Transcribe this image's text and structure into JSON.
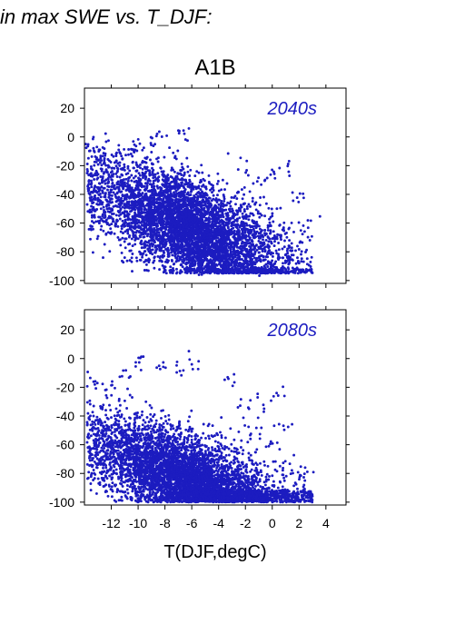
{
  "figure": {
    "title": "in max SWE vs. T_DJF:",
    "scenario": "A1B",
    "xlabel": "T(DJF,degC)"
  },
  "colors": {
    "points": "#1c1cc0",
    "axes": "#000000",
    "background": "#ffffff"
  },
  "chart_data": [
    {
      "type": "scatter",
      "title": "",
      "panel_label": "2040s",
      "xlabel": "",
      "ylabel": "",
      "xlim": [
        -14,
        5.5
      ],
      "ylim": [
        -102,
        34
      ],
      "xticks": [
        -12,
        -10,
        -8,
        -6,
        -4,
        -2,
        0,
        2,
        4
      ],
      "yticks": [
        20,
        0,
        -20,
        -40,
        -60,
        -80,
        -100
      ],
      "xtick_labels_shown": false,
      "grid": false,
      "density": {
        "description_points": [
          [
            -13.8,
            -5
          ],
          [
            -13,
            -10
          ],
          [
            -12,
            -12
          ],
          [
            -11,
            -10
          ],
          [
            -10,
            -8
          ],
          [
            -9,
            -3
          ],
          [
            -8.5,
            2
          ],
          [
            -7,
            3
          ],
          [
            -6.5,
            4
          ],
          [
            -10,
            -20
          ],
          [
            -9,
            -25
          ],
          [
            -8,
            -30
          ],
          [
            -7,
            -35
          ],
          [
            -6,
            -40
          ],
          [
            -5,
            -45
          ],
          [
            -4,
            -50
          ],
          [
            -3,
            -60
          ],
          [
            -2,
            -70
          ],
          [
            -1,
            -80
          ],
          [
            -8,
            -45
          ],
          [
            -7,
            -55
          ],
          [
            -6,
            -60
          ],
          [
            -5,
            -70
          ],
          [
            -4,
            -80
          ],
          [
            -3,
            -88
          ],
          [
            -2,
            -92
          ],
          [
            -1,
            -93
          ],
          [
            0,
            -88
          ],
          [
            1,
            -85
          ],
          [
            -11,
            -35
          ],
          [
            -10,
            -45
          ],
          [
            -9,
            -55
          ],
          [
            -8,
            -68
          ],
          [
            -7,
            -80
          ],
          [
            -6,
            -88
          ],
          [
            -5,
            -92
          ],
          [
            0,
            -25
          ],
          [
            1,
            -22
          ],
          [
            2,
            -40
          ],
          [
            2.5,
            -60
          ],
          [
            -1,
            -30
          ],
          [
            -2,
            -20
          ],
          [
            -1,
            -45
          ],
          [
            0,
            -55
          ],
          [
            1,
            -70
          ]
        ]
      },
      "trend": {
        "slope": -3.8,
        "intercept": -65,
        "spread": 17
      },
      "n_points": 5200
    },
    {
      "type": "scatter",
      "title": "",
      "panel_label": "2080s",
      "xlabel": "T(DJF,degC)",
      "ylabel": "",
      "xlim": [
        -14,
        5.5
      ],
      "ylim": [
        -102,
        34
      ],
      "xticks": [
        -12,
        -10,
        -8,
        -6,
        -4,
        -2,
        0,
        2,
        4
      ],
      "yticks": [
        20,
        0,
        -20,
        -40,
        -60,
        -80,
        -100
      ],
      "xtick_labels_shown": true,
      "grid": false,
      "density": {
        "description_points": [
          [
            -13.8,
            -15
          ],
          [
            -13,
            -18
          ],
          [
            -12,
            -20
          ],
          [
            -11,
            -12
          ],
          [
            -10,
            -5
          ],
          [
            -9.5,
            5
          ],
          [
            -8,
            -5
          ],
          [
            -7,
            -8
          ],
          [
            -6,
            -2
          ],
          [
            -12,
            -45
          ],
          [
            -11,
            -55
          ],
          [
            -10,
            -60
          ],
          [
            -9,
            -70
          ],
          [
            -8,
            -80
          ],
          [
            -7,
            -88
          ],
          [
            -6,
            -95
          ],
          [
            -5,
            -98
          ],
          [
            -4,
            -100
          ],
          [
            -3,
            -98
          ],
          [
            -2,
            -95
          ],
          [
            -1,
            -98
          ],
          [
            0,
            -95
          ],
          [
            1,
            -93
          ],
          [
            -3,
            -15
          ],
          [
            -2,
            -35
          ],
          [
            -1,
            -50
          ],
          [
            0,
            -60
          ],
          [
            1,
            -45
          ],
          [
            0.5,
            -25
          ],
          [
            2.5,
            -80
          ],
          [
            1,
            -75
          ],
          [
            -1,
            -30
          ],
          [
            -2,
            -55
          ]
        ]
      },
      "trend": {
        "slope": -3.3,
        "intercept": -85,
        "spread": 15
      },
      "n_points": 5200
    }
  ]
}
